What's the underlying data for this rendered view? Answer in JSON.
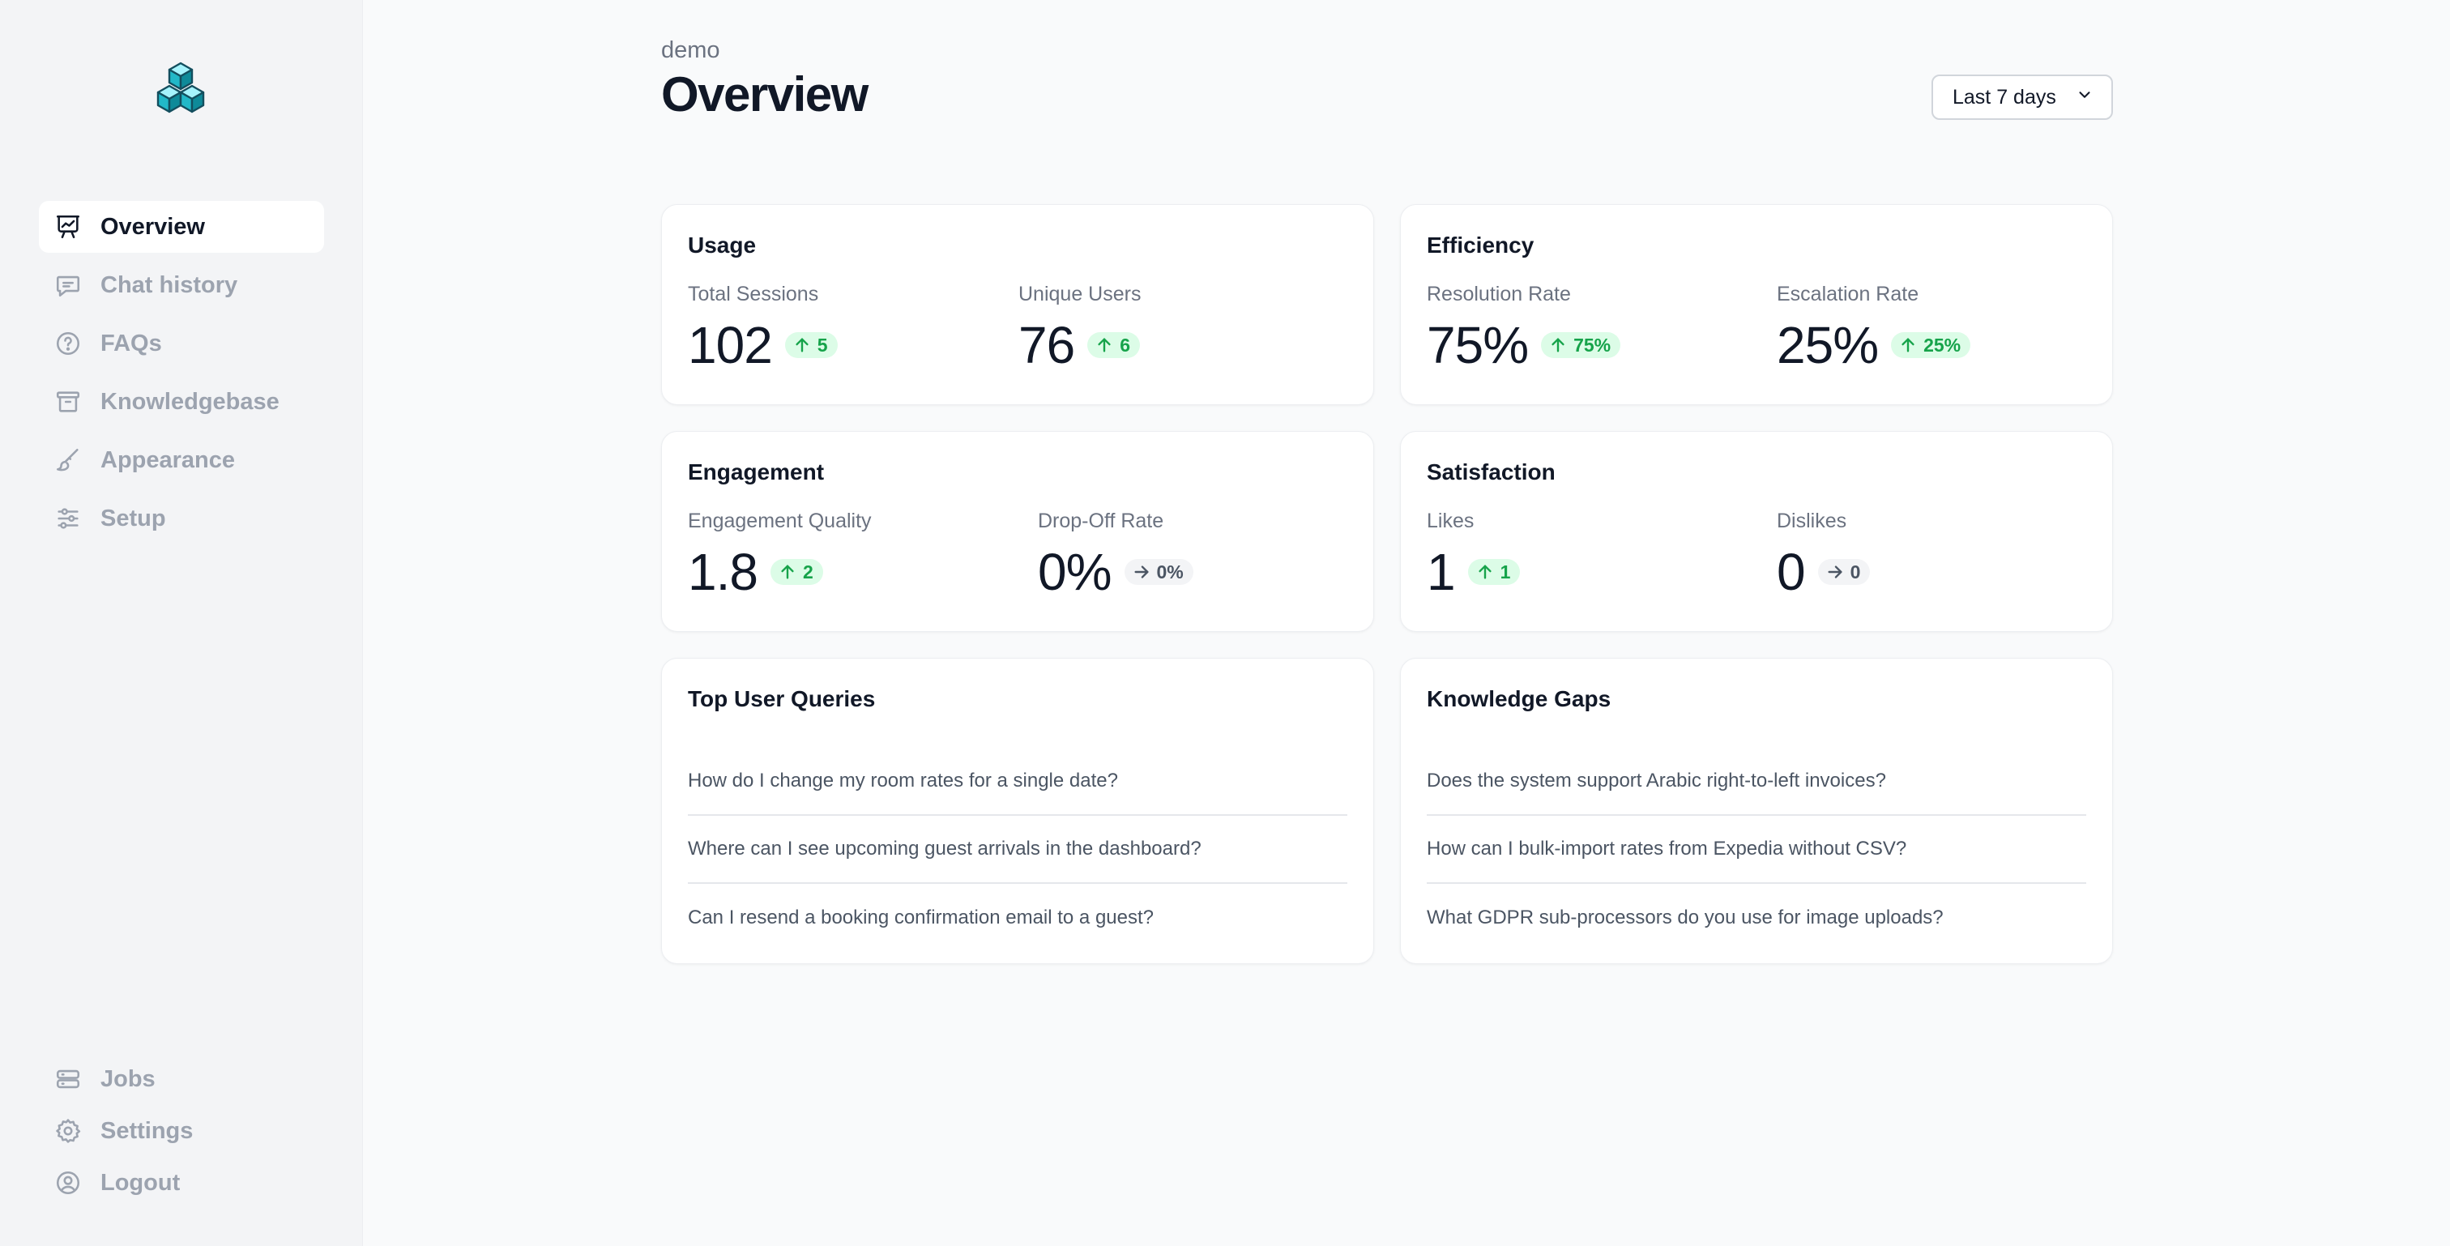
{
  "sidebar": {
    "logo_icon": "cubes-logo-icon",
    "items": [
      {
        "label": "Overview",
        "icon": "presentation-chart-icon",
        "active": true
      },
      {
        "label": "Chat history",
        "icon": "chat-bubble-icon",
        "active": false
      },
      {
        "label": "FAQs",
        "icon": "question-circle-icon",
        "active": false
      },
      {
        "label": "Knowledgebase",
        "icon": "archive-box-icon",
        "active": false
      },
      {
        "label": "Appearance",
        "icon": "paint-brush-icon",
        "active": false
      },
      {
        "label": "Setup",
        "icon": "sliders-icon",
        "active": false
      }
    ],
    "bottom_items": [
      {
        "label": "Jobs",
        "icon": "server-stack-icon"
      },
      {
        "label": "Settings",
        "icon": "gear-icon"
      },
      {
        "label": "Logout",
        "icon": "user-circle-icon"
      }
    ]
  },
  "header": {
    "workspace": "demo",
    "title": "Overview",
    "range_label": "Last 7 days"
  },
  "cards": {
    "usage": {
      "title": "Usage",
      "metrics": [
        {
          "label": "Total Sessions",
          "value": "102",
          "delta": "5",
          "trend": "up"
        },
        {
          "label": "Unique Users",
          "value": "76",
          "delta": "6",
          "trend": "up"
        }
      ]
    },
    "efficiency": {
      "title": "Efficiency",
      "metrics": [
        {
          "label": "Resolution Rate",
          "value": "75%",
          "delta": "75%",
          "trend": "up"
        },
        {
          "label": "Escalation Rate",
          "value": "25%",
          "delta": "25%",
          "trend": "up"
        }
      ]
    },
    "engagement": {
      "title": "Engagement",
      "metrics": [
        {
          "label": "Engagement Quality",
          "value": "1.8",
          "delta": "2",
          "trend": "up"
        },
        {
          "label": "Drop-Off Rate",
          "value": "0%",
          "delta": "0%",
          "trend": "flat"
        }
      ]
    },
    "satisfaction": {
      "title": "Satisfaction",
      "metrics": [
        {
          "label": "Likes",
          "value": "1",
          "delta": "1",
          "trend": "up"
        },
        {
          "label": "Dislikes",
          "value": "0",
          "delta": "0",
          "trend": "flat"
        }
      ]
    },
    "top_queries": {
      "title": "Top User Queries",
      "items": [
        "How do I change my room rates for a single date?",
        "Where can I see upcoming guest arrivals in the dashboard?",
        "Can I resend a booking confirmation email to a guest?"
      ]
    },
    "knowledge_gaps": {
      "title": "Knowledge Gaps",
      "items": [
        "Does the system support Arabic right-to-left invoices?",
        "How can I bulk-import rates from Expedia without CSV?",
        "What GDPR sub-processors do you use for image uploads?"
      ]
    }
  },
  "colors": {
    "accent_teal": "#0e9aa7",
    "up_bg": "#dcfce7",
    "up_fg": "#16a34a",
    "flat_bg": "#f3f4f6",
    "flat_fg": "#4b5563"
  }
}
